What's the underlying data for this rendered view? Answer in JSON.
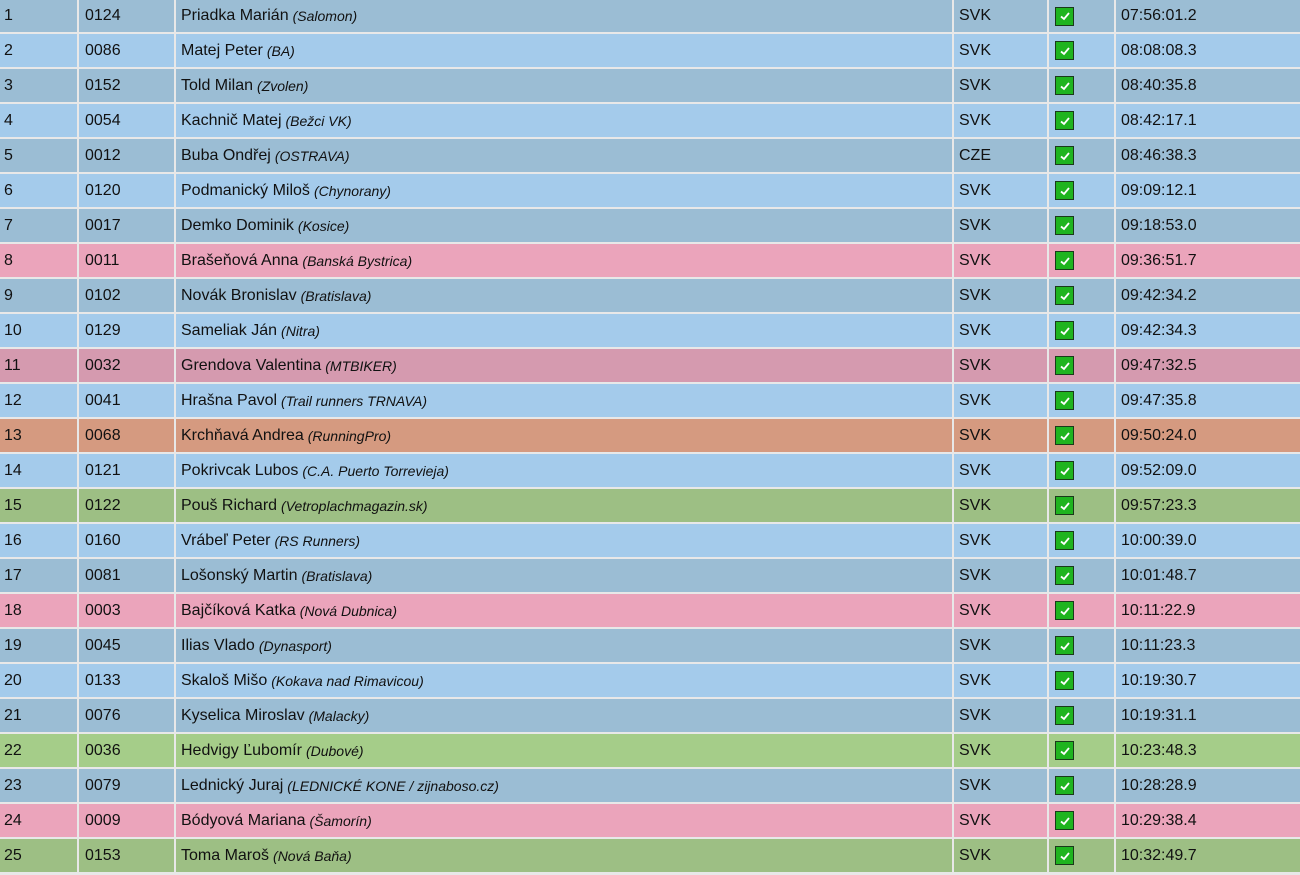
{
  "colors": {
    "dark": "#9bbdd4",
    "light": "#a4cbeb",
    "pink": "#eba4bb",
    "dpink": "#d59aaf",
    "orange": "#d59a80",
    "green": "#9dbf84",
    "lgreen": "#a5cd89",
    "check": "#1fb41f"
  },
  "rows": [
    {
      "rank": "1",
      "bib": "0124",
      "name": "Priadka Marián",
      "club": "(Salomon)",
      "country": "SVK",
      "finished": true,
      "time": "07:56:01.2",
      "style": "dark"
    },
    {
      "rank": "2",
      "bib": "0086",
      "name": "Matej Peter",
      "club": "(BA)",
      "country": "SVK",
      "finished": true,
      "time": "08:08:08.3",
      "style": "light"
    },
    {
      "rank": "3",
      "bib": "0152",
      "name": "Told Milan",
      "club": "(Zvolen)",
      "country": "SVK",
      "finished": true,
      "time": "08:40:35.8",
      "style": "dark"
    },
    {
      "rank": "4",
      "bib": "0054",
      "name": "Kachnič Matej",
      "club": "(Bežci VK)",
      "country": "SVK",
      "finished": true,
      "time": "08:42:17.1",
      "style": "light"
    },
    {
      "rank": "5",
      "bib": "0012",
      "name": "Buba Ondřej",
      "club": "(OSTRAVA)",
      "country": "CZE",
      "finished": true,
      "time": "08:46:38.3",
      "style": "dark"
    },
    {
      "rank": "6",
      "bib": "0120",
      "name": "Podmanický Miloš",
      "club": "(Chynorany)",
      "country": "SVK",
      "finished": true,
      "time": "09:09:12.1",
      "style": "light"
    },
    {
      "rank": "7",
      "bib": "0017",
      "name": "Demko Dominik",
      "club": "(Kosice)",
      "country": "SVK",
      "finished": true,
      "time": "09:18:53.0",
      "style": "dark"
    },
    {
      "rank": "8",
      "bib": "0011",
      "name": "Brašeňová Anna",
      "club": "(Banská Bystrica)",
      "country": "SVK",
      "finished": true,
      "time": "09:36:51.7",
      "style": "pink"
    },
    {
      "rank": "9",
      "bib": "0102",
      "name": "Novák Bronislav",
      "club": "(Bratislava)",
      "country": "SVK",
      "finished": true,
      "time": "09:42:34.2",
      "style": "dark"
    },
    {
      "rank": "10",
      "bib": "0129",
      "name": "Sameliak Ján",
      "club": "(Nitra)",
      "country": "SVK",
      "finished": true,
      "time": "09:42:34.3",
      "style": "light"
    },
    {
      "rank": "11",
      "bib": "0032",
      "name": "Grendova Valentina",
      "club": "(MTBIKER)",
      "country": "SVK",
      "finished": true,
      "time": "09:47:32.5",
      "style": "dpink"
    },
    {
      "rank": "12",
      "bib": "0041",
      "name": "Hrašna Pavol",
      "club": "(Trail runners TRNAVA)",
      "country": "SVK",
      "finished": true,
      "time": "09:47:35.8",
      "style": "light"
    },
    {
      "rank": "13",
      "bib": "0068",
      "name": "Krchňavá Andrea",
      "club": "(RunningPro)",
      "country": "SVK",
      "finished": true,
      "time": "09:50:24.0",
      "style": "orange"
    },
    {
      "rank": "14",
      "bib": "0121",
      "name": "Pokrivcak Lubos",
      "club": "(C.A. Puerto Torrevieja)",
      "country": "SVK",
      "finished": true,
      "time": "09:52:09.0",
      "style": "light"
    },
    {
      "rank": "15",
      "bib": "0122",
      "name": "Pouš Richard",
      "club": "(Vetroplachmagazin.sk)",
      "country": "SVK",
      "finished": true,
      "time": "09:57:23.3",
      "style": "green"
    },
    {
      "rank": "16",
      "bib": "0160",
      "name": "Vrábeľ Peter",
      "club": "(RS Runners)",
      "country": "SVK",
      "finished": true,
      "time": "10:00:39.0",
      "style": "light"
    },
    {
      "rank": "17",
      "bib": "0081",
      "name": "Lošonský Martin",
      "club": "(Bratislava)",
      "country": "SVK",
      "finished": true,
      "time": "10:01:48.7",
      "style": "dark"
    },
    {
      "rank": "18",
      "bib": "0003",
      "name": "Bajčíková Katka",
      "club": "(Nová Dubnica)",
      "country": "SVK",
      "finished": true,
      "time": "10:11:22.9",
      "style": "pink"
    },
    {
      "rank": "19",
      "bib": "0045",
      "name": "Ilias Vlado",
      "club": "(Dynasport)",
      "country": "SVK",
      "finished": true,
      "time": "10:11:23.3",
      "style": "dark"
    },
    {
      "rank": "20",
      "bib": "0133",
      "name": "Skaloš Mišo",
      "club": "(Kokava nad Rimavicou)",
      "country": "SVK",
      "finished": true,
      "time": "10:19:30.7",
      "style": "light"
    },
    {
      "rank": "21",
      "bib": "0076",
      "name": "Kyselica Miroslav",
      "club": "(Malacky)",
      "country": "SVK",
      "finished": true,
      "time": "10:19:31.1",
      "style": "dark"
    },
    {
      "rank": "22",
      "bib": "0036",
      "name": "Hedvigy Ľubomír",
      "club": "(Dubové)",
      "country": "SVK",
      "finished": true,
      "time": "10:23:48.3",
      "style": "lgreen"
    },
    {
      "rank": "23",
      "bib": "0079",
      "name": "Lednický Juraj",
      "club": "(LEDNICKÉ KONE / zijnaboso.cz)",
      "country": "SVK",
      "finished": true,
      "time": "10:28:28.9",
      "style": "dark"
    },
    {
      "rank": "24",
      "bib": "0009",
      "name": "Bódyová Mariana",
      "club": "(Šamorín)",
      "country": "SVK",
      "finished": true,
      "time": "10:29:38.4",
      "style": "pink"
    },
    {
      "rank": "25",
      "bib": "0153",
      "name": "Toma Maroš",
      "club": "(Nová Baňa)",
      "country": "SVK",
      "finished": true,
      "time": "10:32:49.7",
      "style": "green"
    }
  ]
}
